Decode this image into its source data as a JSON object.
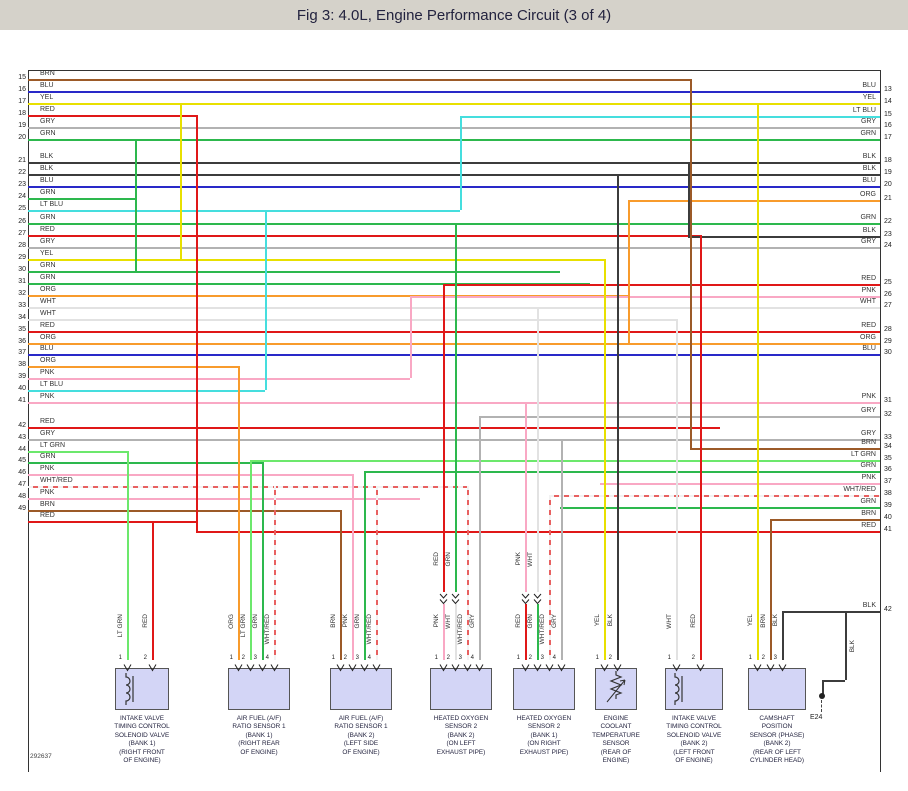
{
  "title": "Fig 3: 4.0L, Engine Performance Circuit (3 of 4)",
  "doc_number": "292637",
  "ground": {
    "label": "E24",
    "wire_color": "BLK",
    "right_pin": "42"
  },
  "colors": {
    "BRN": "#9c5a28",
    "BLU": "#2929c8",
    "YEL": "#e8e000",
    "RED": "#e01818",
    "GRY": "#b2b2b2",
    "GRN": "#2db84d",
    "BLK": "#3c3c3c",
    "LT BLU": "#45dede",
    "ORG": "#f89b2c",
    "WHT": "#e2e2e2",
    "PNK": "#f9a8c4",
    "LT GRN": "#6ce86c",
    "WHT/RED": "#e86060"
  },
  "left_pins": [
    {
      "num": "15",
      "color": "BRN"
    },
    {
      "num": "16",
      "color": "BLU"
    },
    {
      "num": "17",
      "color": "YEL"
    },
    {
      "num": "18",
      "color": "RED"
    },
    {
      "num": "19",
      "color": "GRY"
    },
    {
      "num": "20",
      "color": "GRN"
    },
    {
      "num": "21",
      "color": "BLK"
    },
    {
      "num": "22",
      "color": "BLK"
    },
    {
      "num": "23",
      "color": "BLU"
    },
    {
      "num": "24",
      "color": "GRN"
    },
    {
      "num": "25",
      "color": "LT BLU"
    },
    {
      "num": "26",
      "color": "GRN"
    },
    {
      "num": "27",
      "color": "RED"
    },
    {
      "num": "28",
      "color": "GRY"
    },
    {
      "num": "29",
      "color": "YEL"
    },
    {
      "num": "30",
      "color": "GRN"
    },
    {
      "num": "31",
      "color": "GRN"
    },
    {
      "num": "32",
      "color": "ORG"
    },
    {
      "num": "33",
      "color": "WHT"
    },
    {
      "num": "34",
      "color": "WHT"
    },
    {
      "num": "35",
      "color": "RED"
    },
    {
      "num": "36",
      "color": "ORG"
    },
    {
      "num": "37",
      "color": "BLU"
    },
    {
      "num": "38",
      "color": "ORG"
    },
    {
      "num": "39",
      "color": "PNK"
    },
    {
      "num": "40",
      "color": "LT BLU"
    },
    {
      "num": "41",
      "color": "PNK"
    },
    {
      "num": "42",
      "color": "RED"
    },
    {
      "num": "43",
      "color": "GRY"
    },
    {
      "num": "44",
      "color": "LT GRN"
    },
    {
      "num": "45",
      "color": "GRN"
    },
    {
      "num": "46",
      "color": "PNK"
    },
    {
      "num": "47",
      "color": "WHT/RED"
    },
    {
      "num": "48",
      "color": "PNK"
    },
    {
      "num": "49",
      "color": "BRN"
    },
    {
      "num": "",
      "color": "RED"
    }
  ],
  "right_pins": [
    {
      "num": "13",
      "color": "BLU"
    },
    {
      "num": "14",
      "color": "YEL"
    },
    {
      "num": "15",
      "color": "LT BLU"
    },
    {
      "num": "16",
      "color": "GRY"
    },
    {
      "num": "17",
      "color": "GRN"
    },
    {
      "num": "18",
      "color": "BLK"
    },
    {
      "num": "19",
      "color": "BLK"
    },
    {
      "num": "20",
      "color": "BLU"
    },
    {
      "num": "21",
      "color": "ORG"
    },
    {
      "num": "22",
      "color": "GRN"
    },
    {
      "num": "23",
      "color": "BLK"
    },
    {
      "num": "24",
      "color": "GRY"
    },
    {
      "num": "25",
      "color": "RED"
    },
    {
      "num": "26",
      "color": "PNK"
    },
    {
      "num": "27",
      "color": "WHT"
    },
    {
      "num": "28",
      "color": "RED"
    },
    {
      "num": "29",
      "color": "ORG"
    },
    {
      "num": "30",
      "color": "BLU"
    },
    {
      "num": "31",
      "color": "PNK"
    },
    {
      "num": "32",
      "color": "GRY"
    },
    {
      "num": "33",
      "color": "GRY"
    },
    {
      "num": "34",
      "color": "BRN"
    },
    {
      "num": "35",
      "color": "LT GRN"
    },
    {
      "num": "36",
      "color": "GRN"
    },
    {
      "num": "37",
      "color": "PNK"
    },
    {
      "num": "38",
      "color": "WHT/RED"
    },
    {
      "num": "39",
      "color": "GRN"
    },
    {
      "num": "40",
      "color": "BRN"
    },
    {
      "num": "41",
      "color": "RED"
    },
    {
      "num": "42",
      "color": "BLK"
    }
  ],
  "components": [
    {
      "id": "intake-valve-timing-solenoid-bank1",
      "symbol": "coil",
      "name_lines": [
        "INTAKE VALVE",
        "TIMING CONTROL",
        "SOLENOID VALVE",
        "(BANK 1)",
        "(RIGHT FRONT",
        "OF ENGINE)"
      ],
      "pins": [
        {
          "num": "1",
          "label": "LT GRN"
        },
        {
          "num": "2",
          "label": "RED"
        }
      ]
    },
    {
      "id": "air-fuel-ratio-sensor1-bank1",
      "symbol": "none",
      "name_lines": [
        "AIR FUEL (A/F)",
        "RATIO SENSOR 1",
        "(BANK 1)",
        "(RIGHT REAR",
        "OF ENGINE)"
      ],
      "pins": [
        {
          "num": "1",
          "label": "ORG"
        },
        {
          "num": "2",
          "label": "LT GRN"
        },
        {
          "num": "3",
          "label": "GRN"
        },
        {
          "num": "4",
          "label": "WHT/RED"
        }
      ]
    },
    {
      "id": "air-fuel-ratio-sensor1-bank2",
      "symbol": "none",
      "name_lines": [
        "AIR FUEL (A/F)",
        "RATIO SENSOR 1",
        "(BANK 2)",
        "(LEFT SIDE",
        "OF ENGINE)"
      ],
      "pins": [
        {
          "num": "1",
          "label": "BRN"
        },
        {
          "num": "2",
          "label": "PNK"
        },
        {
          "num": "3",
          "label": "GRN"
        },
        {
          "num": "4",
          "label": "WHT/RED"
        }
      ]
    },
    {
      "id": "heated-oxygen-sensor2-bank2",
      "symbol": "none",
      "name_lines": [
        "HEATED OXYGEN",
        "SENSOR 2",
        "(BANK 2)",
        "(ON LEFT",
        "EXHAUST PIPE)"
      ],
      "pins": [
        {
          "num": "1",
          "label": "PNK",
          "upper": "RED"
        },
        {
          "num": "2",
          "label": "WHT",
          "upper": "GRN"
        },
        {
          "num": "3",
          "label": "WHT/RED"
        },
        {
          "num": "4",
          "label": "GRY"
        }
      ]
    },
    {
      "id": "heated-oxygen-sensor2-bank1",
      "symbol": "none",
      "name_lines": [
        "HEATED OXYGEN",
        "SENSOR 2",
        "(BANK 1)",
        "(ON RIGHT",
        "EXHAUST PIPE)"
      ],
      "pins": [
        {
          "num": "1",
          "label": "RED",
          "upper": "PNK"
        },
        {
          "num": "2",
          "label": "GRN",
          "upper": "WHT"
        },
        {
          "num": "3",
          "label": "WHT/RED"
        },
        {
          "num": "4",
          "label": "GRY"
        }
      ]
    },
    {
      "id": "engine-coolant-temperature-sensor",
      "symbol": "thermistor",
      "name_lines": [
        "ENGINE",
        "COOLANT",
        "TEMPERATURE",
        "SENSOR",
        "(REAR OF",
        "ENGINE)"
      ],
      "pins": [
        {
          "num": "1",
          "label": "YEL"
        },
        {
          "num": "2",
          "label": "BLK"
        }
      ]
    },
    {
      "id": "intake-valve-timing-solenoid-bank2",
      "symbol": "coil",
      "name_lines": [
        "INTAKE VALVE",
        "TIMING CONTROL",
        "SOLENOID VALVE",
        "(BANK 2)",
        "(LEFT FRONT",
        "OF ENGINE)"
      ],
      "pins": [
        {
          "num": "1",
          "label": "WHT"
        },
        {
          "num": "2",
          "label": "RED"
        }
      ]
    },
    {
      "id": "camshaft-position-sensor-phase-bank2",
      "symbol": "none",
      "name_lines": [
        "CAMSHAFT",
        "POSITION",
        "SENSOR (PHASE)",
        "(BANK 2)",
        "(REAR OF LEFT",
        "CYLINDER HEAD)"
      ],
      "pins": [
        {
          "num": "1",
          "label": "YEL"
        },
        {
          "num": "2",
          "label": "BRN"
        },
        {
          "num": "3",
          "label": "BLK"
        }
      ]
    }
  ]
}
